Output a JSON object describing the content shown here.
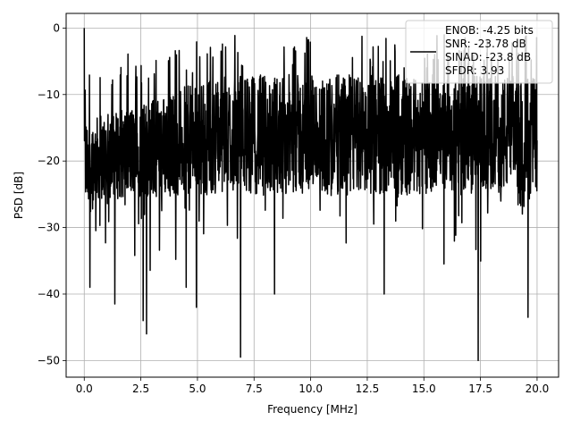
{
  "chart_data": {
    "type": "line",
    "xlabel": "Frequency [MHz]",
    "ylabel": "PSD [dB]",
    "xlim": [
      -0.8,
      20.95
    ],
    "ylim": [
      -52.5,
      2.2
    ],
    "x_ticks": [
      0.0,
      2.5,
      5.0,
      7.5,
      10.0,
      12.5,
      15.0,
      17.5,
      20.0
    ],
    "x_tick_labels": [
      "0.0",
      "2.5",
      "5.0",
      "7.5",
      "10.0",
      "12.5",
      "15.0",
      "17.5",
      "20.0"
    ],
    "y_ticks": [
      0,
      -10,
      -20,
      -30,
      -40,
      -50
    ],
    "y_tick_labels": [
      "0",
      "−10",
      "−20",
      "−30",
      "−40",
      "−50"
    ],
    "grid": true,
    "legend_position": "top-right",
    "legend_lines": [
      "ENOB: -4.25 bits",
      "SNR: -23.78 dB",
      "SINAD: -23.8 dB",
      "SFDR: 3.93"
    ],
    "series": [
      {
        "color": "#000000",
        "x_range": [
          0.0,
          20.0
        ],
        "point_count": 2000,
        "peak": {
          "x": 0.0,
          "y": 0.0
        },
        "notches": [
          {
            "x": 0.25,
            "y": -39
          },
          {
            "x": 1.35,
            "y": -41.5
          },
          {
            "x": 2.6,
            "y": -44
          },
          {
            "x": 2.75,
            "y": -46
          },
          {
            "x": 4.5,
            "y": -39
          },
          {
            "x": 4.95,
            "y": -42
          },
          {
            "x": 6.9,
            "y": -49.5
          },
          {
            "x": 8.4,
            "y": -40
          },
          {
            "x": 13.25,
            "y": -40
          },
          {
            "x": 17.4,
            "y": -50
          },
          {
            "x": 19.6,
            "y": -43.5
          }
        ]
      }
    ]
  }
}
